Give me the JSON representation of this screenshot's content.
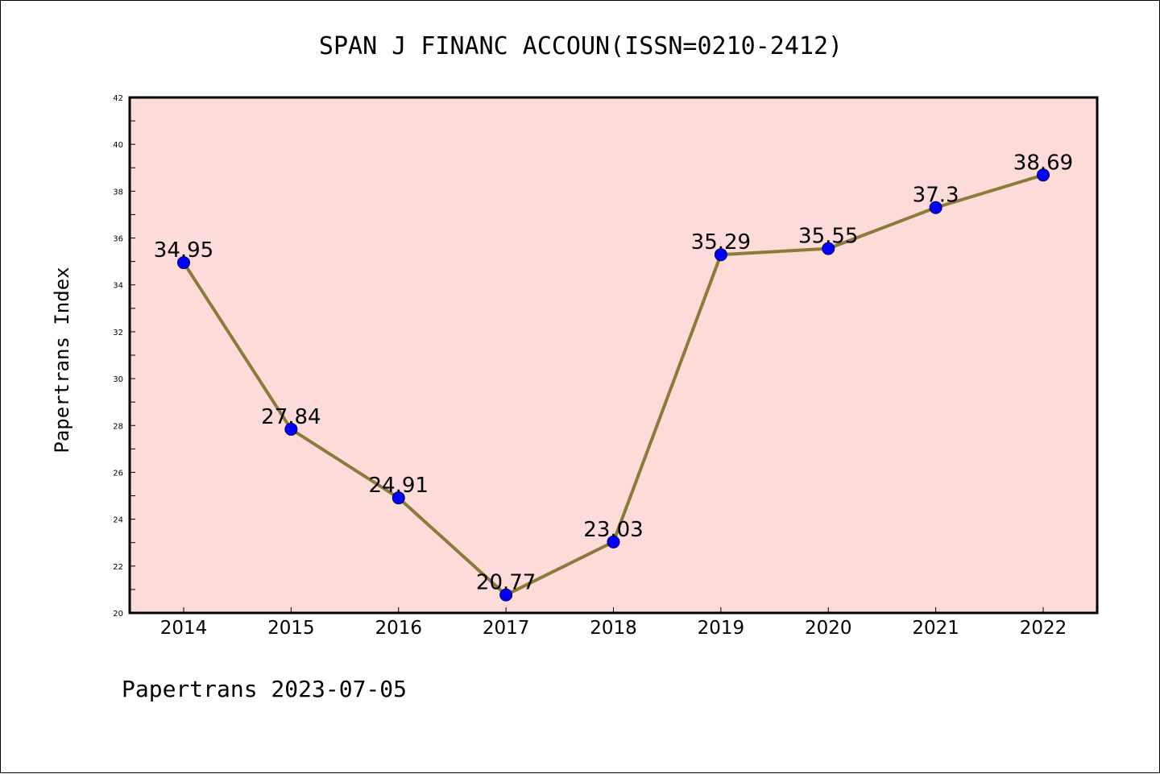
{
  "chart_data": {
    "type": "line",
    "title": "SPAN J FINANC ACCOUN(ISSN=0210-2412)",
    "xlabel": "",
    "ylabel": "Papertrans Index",
    "categories": [
      "2014",
      "2015",
      "2016",
      "2017",
      "2018",
      "2019",
      "2020",
      "2021",
      "2022"
    ],
    "values": [
      34.95,
      27.84,
      24.91,
      20.77,
      23.03,
      35.29,
      35.55,
      37.3,
      38.69
    ],
    "data_labels": [
      "34.95",
      "27.84",
      "24.91",
      "20.77",
      "23.03",
      "35.29",
      "35.55",
      "37.3",
      "38.69"
    ],
    "ylim": [
      20,
      42
    ],
    "yticks": [
      20,
      22,
      24,
      26,
      28,
      30,
      32,
      34,
      36,
      38,
      40,
      42
    ],
    "ytick_labels": [
      "20",
      "22",
      "24",
      "26",
      "28",
      "30",
      "32",
      "34",
      "36",
      "38",
      "40",
      "42"
    ],
    "grid": false,
    "legend": "none",
    "colors": {
      "plot_background": "#fddbd9",
      "line": "#8b7b3a",
      "marker": "#0000ff",
      "frame": "#000000"
    }
  },
  "footer": "Papertrans 2023-07-05"
}
